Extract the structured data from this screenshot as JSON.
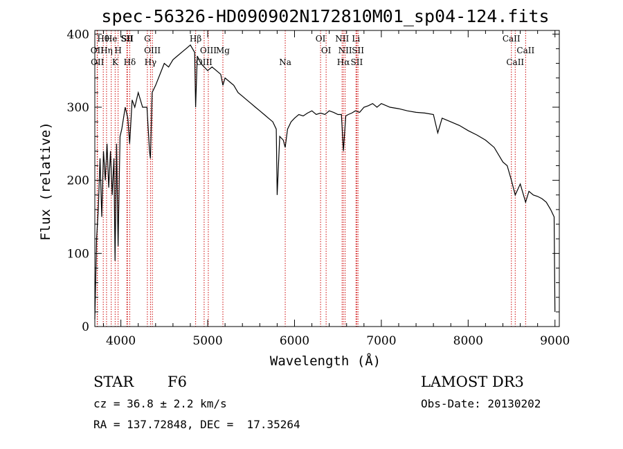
{
  "chart_data": {
    "type": "line",
    "title": "spec-56326-HD090902N172810M01_sp04-124.fits",
    "xlabel": "Wavelength (Å)",
    "ylabel": "Flux (relative)",
    "xlim": [
      3700,
      9050
    ],
    "ylim": [
      0,
      405
    ],
    "x_ticks": [
      4000,
      5000,
      6000,
      7000,
      8000,
      9000
    ],
    "y_ticks": [
      0,
      100,
      200,
      300,
      400
    ],
    "grid": false,
    "series": [
      {
        "x": [
          3700,
          3720,
          3740,
          3760,
          3780,
          3800,
          3820,
          3840,
          3860,
          3880,
          3900,
          3920,
          3933,
          3950,
          3968,
          3990,
          4010,
          4050,
          4080,
          4101,
          4130,
          4160,
          4200,
          4250,
          4300,
          4330,
          4340,
          4360,
          4400,
          4450,
          4500,
          4550,
          4600,
          4650,
          4700,
          4750,
          4800,
          4850,
          4861,
          4880,
          4920,
          4960,
          5000,
          5050,
          5100,
          5150,
          5175,
          5200,
          5250,
          5300,
          5350,
          5400,
          5450,
          5500,
          5550,
          5600,
          5650,
          5700,
          5750,
          5790,
          5800,
          5830,
          5870,
          5893,
          5920,
          5960,
          6000,
          6050,
          6100,
          6150,
          6200,
          6250,
          6300,
          6350,
          6400,
          6450,
          6500,
          6540,
          6563,
          6590,
          6620,
          6660,
          6700,
          6750,
          6800,
          6850,
          6900,
          6950,
          7000,
          7100,
          7200,
          7300,
          7400,
          7500,
          7600,
          7650,
          7700,
          7800,
          7900,
          8000,
          8100,
          8200,
          8300,
          8400,
          8450,
          8498,
          8542,
          8600,
          8662,
          8700,
          8750,
          8800,
          8850,
          8900,
          8950,
          8990,
          9000
        ],
        "y": [
          10,
          120,
          160,
          230,
          150,
          240,
          200,
          250,
          190,
          240,
          180,
          230,
          90,
          250,
          110,
          260,
          270,
          300,
          285,
          250,
          310,
          300,
          320,
          300,
          300,
          240,
          230,
          320,
          330,
          345,
          360,
          355,
          365,
          370,
          375,
          380,
          385,
          375,
          300,
          370,
          360,
          355,
          350,
          355,
          350,
          345,
          330,
          340,
          335,
          330,
          320,
          315,
          310,
          305,
          300,
          295,
          290,
          285,
          280,
          270,
          180,
          260,
          255,
          245,
          270,
          280,
          285,
          290,
          288,
          292,
          295,
          290,
          292,
          290,
          295,
          293,
          290,
          290,
          240,
          288,
          290,
          292,
          295,
          293,
          300,
          302,
          305,
          300,
          305,
          300,
          298,
          295,
          293,
          292,
          290,
          265,
          285,
          280,
          275,
          268,
          262,
          255,
          245,
          225,
          220,
          200,
          180,
          195,
          170,
          185,
          180,
          178,
          175,
          170,
          160,
          150,
          20
        ]
      }
    ],
    "line_markers": [
      {
        "label": "Hθ",
        "x": 3797
      },
      {
        "label": "OII",
        "x": 3727
      },
      {
        "label": "OII",
        "x": 3730
      },
      {
        "label": "He",
        "x": 3889
      },
      {
        "label": "Hη",
        "x": 3835
      },
      {
        "label": "K",
        "x": 3934
      },
      {
        "label": "SII",
        "x": 4069
      },
      {
        "label": "H",
        "x": 3968
      },
      {
        "label": "Hδ",
        "x": 4102
      },
      {
        "label": "SII",
        "x": 4076
      },
      {
        "label": "OIII",
        "x": 4363
      },
      {
        "label": "Hγ",
        "x": 4341
      },
      {
        "label": "G",
        "x": 4305
      },
      {
        "label": "OIII",
        "x": 5007
      },
      {
        "label": "OIII",
        "x": 4959
      },
      {
        "label": "Hβ",
        "x": 4861
      },
      {
        "label": "Mg",
        "x": 5175
      },
      {
        "label": "Na",
        "x": 5893
      },
      {
        "label": "OI",
        "x": 6300
      },
      {
        "label": "OI",
        "x": 6364
      },
      {
        "label": "Hα",
        "x": 6563
      },
      {
        "label": "NII",
        "x": 6548
      },
      {
        "label": "NII",
        "x": 6583
      },
      {
        "label": "SII",
        "x": 6717
      },
      {
        "label": "Li",
        "x": 6708
      },
      {
        "label": "SII",
        "x": 6731
      },
      {
        "label": "CaII",
        "x": 8542
      },
      {
        "label": "CaII",
        "x": 8498
      },
      {
        "label": "CaII",
        "x": 8662
      }
    ],
    "line_color": "#000000",
    "marker_color": "#cc0000"
  },
  "info": {
    "class": "STAR",
    "subclass": "F6",
    "survey": "LAMOST DR3",
    "cz": "cz = 36.8 ± 2.2 km/s",
    "obs_date": "Obs-Date: 20130202",
    "radec": "RA = 137.72848, DEC =  17.35264"
  }
}
